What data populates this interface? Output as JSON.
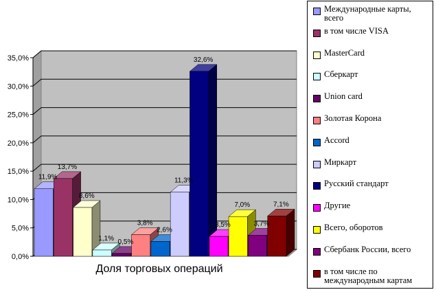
{
  "chart_data": {
    "type": "bar",
    "xlabel": "Доля торговых операций",
    "ylim": [
      0,
      35
    ],
    "y_ticks": [
      "0,0%",
      "5,0%",
      "10,0%",
      "15,0%",
      "20,0%",
      "25,0%",
      "30,0%",
      "35,0%"
    ],
    "grid": true,
    "legend_position": "right",
    "series": [
      {
        "name": "Международные карты, всего",
        "value": 11.9,
        "label": "11,9%",
        "color": "#9999ff"
      },
      {
        "name": "в том числе VISA",
        "value": 13.7,
        "label": "13,7%",
        "color": "#993366"
      },
      {
        "name": "MasterCard",
        "value": 8.6,
        "label": "8,6%",
        "color": "#ffffcc"
      },
      {
        "name": "Сберкарт",
        "value": 1.1,
        "label": "1,1%",
        "color": "#ccffff"
      },
      {
        "name": "Union card",
        "value": 0.5,
        "label": "0,5%",
        "color": "#660066"
      },
      {
        "name": "Золотая Корона",
        "value": 3.8,
        "label": "3,8%",
        "color": "#ff8080"
      },
      {
        "name": "Accord",
        "value": 2.6,
        "label": "2,6%",
        "color": "#0066cc"
      },
      {
        "name": "Миркарт",
        "value": 11.3,
        "label": "11,3%",
        "color": "#ccccff"
      },
      {
        "name": "Русский стандарт",
        "value": 32.6,
        "label": "32,6%",
        "color": "#000080"
      },
      {
        "name": "Другие",
        "value": 3.5,
        "label": "3,5%",
        "color": "#ff00ff"
      },
      {
        "name": "Всего, оборотов",
        "value": 7.0,
        "label": "7,0%",
        "color": "#ffff00"
      },
      {
        "name": "Сбербанк России, всего",
        "value": 3.7,
        "label": "3,7%",
        "color": "#800080"
      },
      {
        "name": "в том числе по международным картам",
        "value": 7.1,
        "label": "7,1%",
        "color": "#800000"
      }
    ]
  }
}
